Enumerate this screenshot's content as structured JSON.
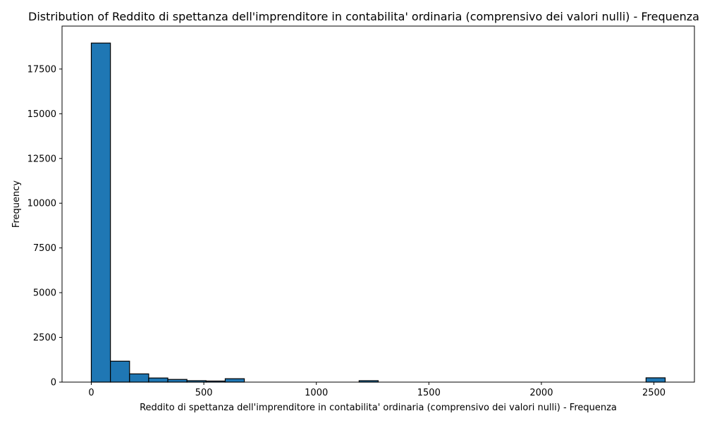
{
  "chart_data": {
    "type": "bar",
    "title": "Distribution of Reddito di spettanza dell'imprenditore in contabilita' ordinaria  (comprensivo dei valori nulli) - Frequenza",
    "xlabel": "Reddito di spettanza dell'imprenditore in contabilita' ordinaria  (comprensivo dei valori nulli) - Frequenza",
    "ylabel": "Frequency",
    "xlim": [
      -130,
      2680
    ],
    "ylim": [
      0,
      19900
    ],
    "xticks": [
      0,
      500,
      1000,
      1500,
      2000,
      2500
    ],
    "yticks": [
      0,
      2500,
      5000,
      7500,
      10000,
      12500,
      15000,
      17500
    ],
    "grid": false,
    "bins": [
      {
        "x0": 0,
        "x1": 85,
        "count": 18950
      },
      {
        "x0": 85,
        "x1": 170,
        "count": 1170
      },
      {
        "x0": 170,
        "x1": 255,
        "count": 460
      },
      {
        "x0": 255,
        "x1": 340,
        "count": 230
      },
      {
        "x0": 340,
        "x1": 425,
        "count": 150
      },
      {
        "x0": 425,
        "x1": 510,
        "count": 80
      },
      {
        "x0": 510,
        "x1": 595,
        "count": 60
      },
      {
        "x0": 595,
        "x1": 680,
        "count": 190
      },
      {
        "x0": 680,
        "x1": 765,
        "count": 0
      },
      {
        "x0": 765,
        "x1": 850,
        "count": 0
      },
      {
        "x0": 850,
        "x1": 935,
        "count": 0
      },
      {
        "x0": 935,
        "x1": 1020,
        "count": 0
      },
      {
        "x0": 1020,
        "x1": 1105,
        "count": 0
      },
      {
        "x0": 1105,
        "x1": 1190,
        "count": 0
      },
      {
        "x0": 1190,
        "x1": 1275,
        "count": 80
      },
      {
        "x0": 1275,
        "x1": 1360,
        "count": 0
      },
      {
        "x0": 1360,
        "x1": 1445,
        "count": 0
      },
      {
        "x0": 1445,
        "x1": 1530,
        "count": 0
      },
      {
        "x0": 1530,
        "x1": 1615,
        "count": 0
      },
      {
        "x0": 1615,
        "x1": 1700,
        "count": 0
      },
      {
        "x0": 1700,
        "x1": 1785,
        "count": 0
      },
      {
        "x0": 1785,
        "x1": 1870,
        "count": 0
      },
      {
        "x0": 1870,
        "x1": 1955,
        "count": 0
      },
      {
        "x0": 1955,
        "x1": 2040,
        "count": 0
      },
      {
        "x0": 2040,
        "x1": 2125,
        "count": 0
      },
      {
        "x0": 2125,
        "x1": 2210,
        "count": 0
      },
      {
        "x0": 2210,
        "x1": 2295,
        "count": 0
      },
      {
        "x0": 2295,
        "x1": 2380,
        "count": 0
      },
      {
        "x0": 2380,
        "x1": 2465,
        "count": 0
      },
      {
        "x0": 2465,
        "x1": 2550,
        "count": 240
      }
    ]
  }
}
